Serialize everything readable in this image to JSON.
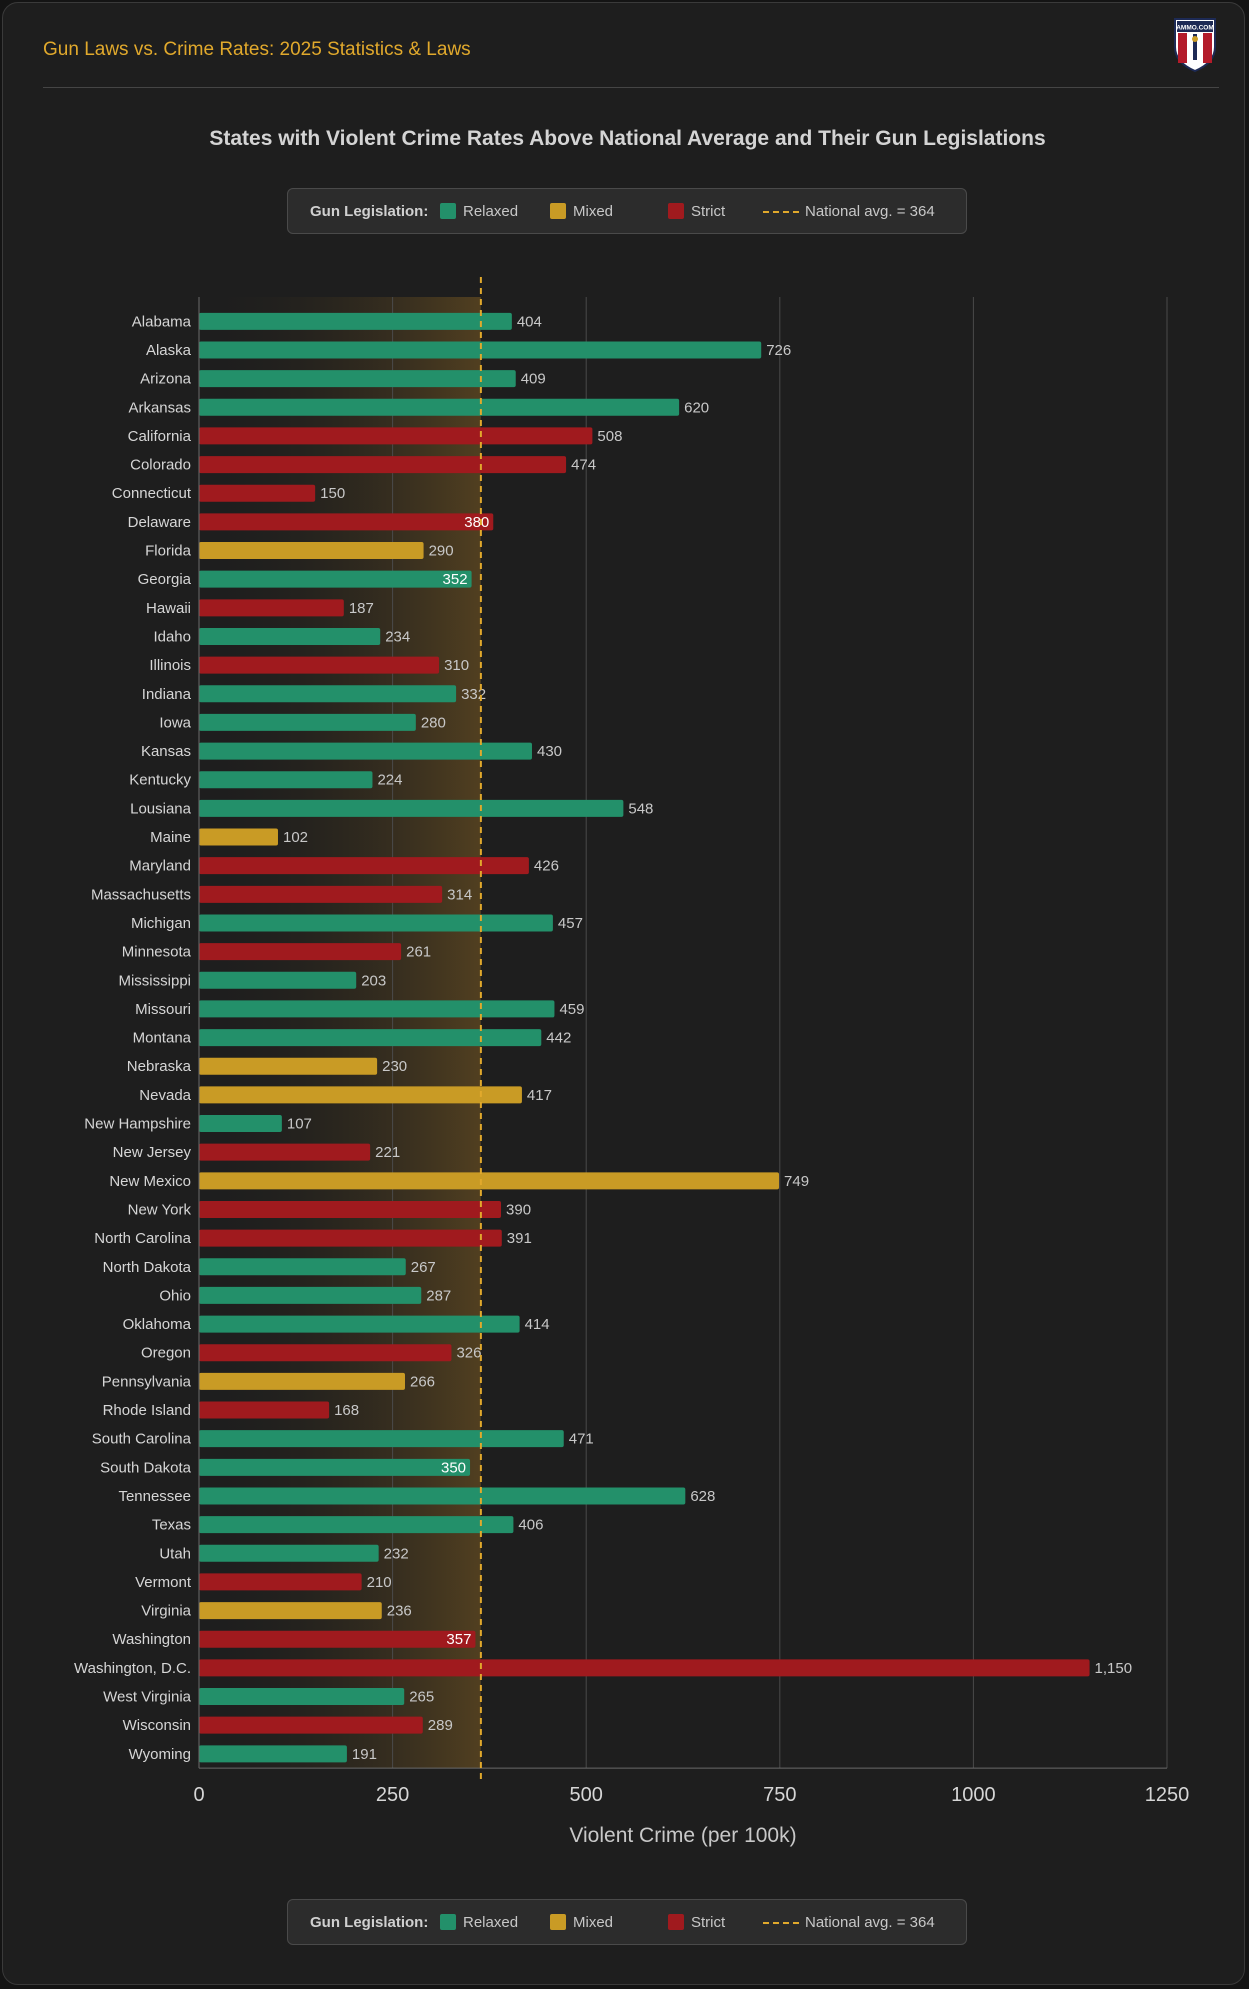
{
  "header": {
    "title": "Gun Laws vs. Crime Rates: 2025 Statistics & Laws",
    "logo_text": "AMMO.COM"
  },
  "legend": {
    "title": "Gun Legislation:",
    "items": [
      {
        "label": "Relaxed",
        "color": "#23906a"
      },
      {
        "label": "Mixed",
        "color": "#c99b25"
      },
      {
        "label": "Strict",
        "color": "#a01a1e"
      }
    ],
    "avg_label": "National avg. = 364"
  },
  "chart_data": {
    "type": "bar",
    "orientation": "horizontal",
    "title": "States with Violent Crime Rates Above National Average and Their Gun Legislations",
    "xlabel": "Violent Crime (per 100k)",
    "ylabel": "",
    "xlim": [
      0,
      1250
    ],
    "xticks": [
      "0",
      "250",
      "500",
      "750",
      "1000",
      "1250"
    ],
    "national_average": 364,
    "colors": {
      "Relaxed": "#23906a",
      "Mixed": "#c99b25",
      "Strict": "#a01a1e"
    },
    "bars": [
      {
        "state": "Alabama",
        "value": 404,
        "label": "404",
        "legislation": "Relaxed"
      },
      {
        "state": "Alaska",
        "value": 726,
        "label": "726",
        "legislation": "Relaxed"
      },
      {
        "state": "Arizona",
        "value": 409,
        "label": "409",
        "legislation": "Relaxed"
      },
      {
        "state": "Arkansas",
        "value": 620,
        "label": "620",
        "legislation": "Relaxed"
      },
      {
        "state": "California",
        "value": 508,
        "label": "508",
        "legislation": "Strict"
      },
      {
        "state": "Colorado",
        "value": 474,
        "label": "474",
        "legislation": "Strict"
      },
      {
        "state": "Connecticut",
        "value": 150,
        "label": "150",
        "legislation": "Strict"
      },
      {
        "state": "Delaware",
        "value": 380,
        "label": "380",
        "legislation": "Strict"
      },
      {
        "state": "Florida",
        "value": 290,
        "label": "290",
        "legislation": "Mixed"
      },
      {
        "state": "Georgia",
        "value": 352,
        "label": "352",
        "legislation": "Relaxed"
      },
      {
        "state": "Hawaii",
        "value": 187,
        "label": "187",
        "legislation": "Strict"
      },
      {
        "state": "Idaho",
        "value": 234,
        "label": "234",
        "legislation": "Relaxed"
      },
      {
        "state": "Illinois",
        "value": 310,
        "label": "310",
        "legislation": "Strict"
      },
      {
        "state": "Indiana",
        "value": 332,
        "label": "332",
        "legislation": "Relaxed"
      },
      {
        "state": "Iowa",
        "value": 280,
        "label": "280",
        "legislation": "Relaxed"
      },
      {
        "state": "Kansas",
        "value": 430,
        "label": "430",
        "legislation": "Relaxed"
      },
      {
        "state": "Kentucky",
        "value": 224,
        "label": "224",
        "legislation": "Relaxed"
      },
      {
        "state": "Lousiana",
        "value": 548,
        "label": "548",
        "legislation": "Relaxed"
      },
      {
        "state": "Maine",
        "value": 102,
        "label": "102",
        "legislation": "Mixed"
      },
      {
        "state": "Maryland",
        "value": 426,
        "label": "426",
        "legislation": "Strict"
      },
      {
        "state": "Massachusetts",
        "value": 314,
        "label": "314",
        "legislation": "Strict"
      },
      {
        "state": "Michigan",
        "value": 457,
        "label": "457",
        "legislation": "Relaxed"
      },
      {
        "state": "Minnesota",
        "value": 261,
        "label": "261",
        "legislation": "Strict"
      },
      {
        "state": "Mississippi",
        "value": 203,
        "label": "203",
        "legislation": "Relaxed"
      },
      {
        "state": "Missouri",
        "value": 459,
        "label": "459",
        "legislation": "Relaxed"
      },
      {
        "state": "Montana",
        "value": 442,
        "label": "442",
        "legislation": "Relaxed"
      },
      {
        "state": "Nebraska",
        "value": 230,
        "label": "230",
        "legislation": "Mixed"
      },
      {
        "state": "Nevada",
        "value": 417,
        "label": "417",
        "legislation": "Mixed"
      },
      {
        "state": "New Hampshire",
        "value": 107,
        "label": "107",
        "legislation": "Relaxed"
      },
      {
        "state": "New Jersey",
        "value": 221,
        "label": "221",
        "legislation": "Strict"
      },
      {
        "state": "New Mexico",
        "value": 749,
        "label": "749",
        "legislation": "Mixed"
      },
      {
        "state": "New York",
        "value": 390,
        "label": "390",
        "legislation": "Strict"
      },
      {
        "state": "North Carolina",
        "value": 391,
        "label": "391",
        "legislation": "Strict"
      },
      {
        "state": "North Dakota",
        "value": 267,
        "label": "267",
        "legislation": "Relaxed"
      },
      {
        "state": "Ohio",
        "value": 287,
        "label": "287",
        "legislation": "Relaxed"
      },
      {
        "state": "Oklahoma",
        "value": 414,
        "label": "414",
        "legislation": "Relaxed"
      },
      {
        "state": "Oregon",
        "value": 326,
        "label": "326",
        "legislation": "Strict"
      },
      {
        "state": "Pennsylvania",
        "value": 266,
        "label": "266",
        "legislation": "Mixed"
      },
      {
        "state": "Rhode Island",
        "value": 168,
        "label": "168",
        "legislation": "Strict"
      },
      {
        "state": "South Carolina",
        "value": 471,
        "label": "471",
        "legislation": "Relaxed"
      },
      {
        "state": "South Dakota",
        "value": 350,
        "label": "350",
        "legislation": "Relaxed"
      },
      {
        "state": "Tennessee",
        "value": 628,
        "label": "628",
        "legislation": "Relaxed"
      },
      {
        "state": "Texas",
        "value": 406,
        "label": "406",
        "legislation": "Relaxed"
      },
      {
        "state": "Utah",
        "value": 232,
        "label": "232",
        "legislation": "Relaxed"
      },
      {
        "state": "Vermont",
        "value": 210,
        "label": "210",
        "legislation": "Strict"
      },
      {
        "state": "Virginia",
        "value": 236,
        "label": "236",
        "legislation": "Mixed"
      },
      {
        "state": "Washington",
        "value": 357,
        "label": "357",
        "legislation": "Strict"
      },
      {
        "state": "Washington, D.C.",
        "value": 1150,
        "label": "1,150",
        "legislation": "Strict"
      },
      {
        "state": "West Virginia",
        "value": 265,
        "label": "265",
        "legislation": "Relaxed"
      },
      {
        "state": "Wisconsin",
        "value": 289,
        "label": "289",
        "legislation": "Strict"
      },
      {
        "state": "Wyoming",
        "value": 191,
        "label": "191",
        "legislation": "Relaxed"
      }
    ]
  }
}
